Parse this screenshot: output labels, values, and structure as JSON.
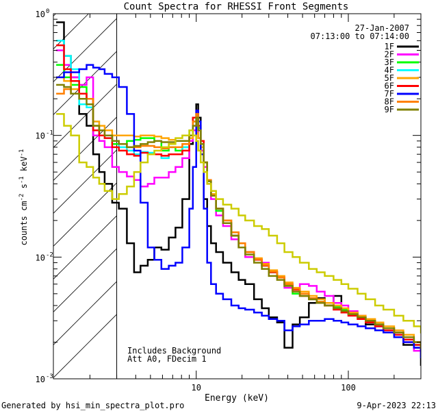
{
  "chart_data": {
    "type": "line",
    "title": "Count Spectra for RHESSI Front Segments",
    "xlabel": "Energy (keV)",
    "ylabel": "counts cm^-2 s^-1 keV^-1",
    "xscale": "log",
    "yscale": "log",
    "xlim": [
      1.15,
      300
    ],
    "ylim": [
      0.001,
      1.0
    ],
    "x_ticks": [
      {
        "value": 10,
        "label": "10"
      },
      {
        "value": 100,
        "label": "100"
      }
    ],
    "y_ticks": [
      {
        "value": 0.001,
        "label": "10",
        "exp": "-3"
      },
      {
        "value": 0.01,
        "label": "10",
        "exp": "-2"
      },
      {
        "value": 0.1,
        "label": "10",
        "exp": "-1"
      },
      {
        "value": 1.0,
        "label": "10",
        "exp": "0"
      }
    ],
    "hatched_region_upper_kev": 3.0,
    "legend": {
      "placement": "top-right",
      "date": "27-Jan-2007",
      "time_range": "07:13:00 to 07:14:00"
    },
    "annotations": [
      "Includes Background",
      "Att A0, FDecim 1"
    ],
    "series": [
      {
        "name": "1F",
        "color": "#000000",
        "x": [
          1.2,
          1.35,
          1.5,
          1.7,
          1.9,
          2.1,
          2.3,
          2.5,
          2.8,
          3.1,
          3.5,
          3.9,
          4.3,
          4.8,
          5.3,
          5.9,
          6.6,
          7.3,
          8.1,
          9.0,
          9.5,
          10.0,
          10.3,
          10.7,
          11.2,
          11.8,
          12.5,
          13.5,
          15,
          17,
          19,
          21,
          24,
          27,
          30,
          34,
          38,
          43,
          48,
          55,
          62,
          70,
          80,
          90,
          100,
          115,
          130,
          150,
          170,
          200,
          230,
          270,
          300
        ],
        "y": [
          0.85,
          0.45,
          0.3,
          0.15,
          0.12,
          0.07,
          0.05,
          0.04,
          0.028,
          0.025,
          0.013,
          0.0075,
          0.0085,
          0.0095,
          0.012,
          0.0115,
          0.0145,
          0.0175,
          0.03,
          0.085,
          0.14,
          0.18,
          0.14,
          0.07,
          0.03,
          0.018,
          0.013,
          0.011,
          0.009,
          0.0075,
          0.0065,
          0.006,
          0.0045,
          0.0038,
          0.0032,
          0.0029,
          0.0018,
          0.0028,
          0.0032,
          0.0042,
          0.0046,
          0.004,
          0.0048,
          0.0036,
          0.0034,
          0.0032,
          0.0028,
          0.0027,
          0.0026,
          0.0024,
          0.0019,
          0.0018,
          0.0013
        ]
      },
      {
        "name": "2F",
        "color": "#ff00ff",
        "x": [
          1.2,
          1.35,
          1.5,
          1.7,
          1.9,
          2.1,
          2.3,
          2.5,
          2.8,
          3.1,
          3.5,
          3.9,
          4.3,
          4.8,
          5.3,
          5.9,
          6.6,
          7.3,
          8.1,
          9.0,
          9.5,
          10.0,
          10.3,
          10.7,
          11.2,
          11.8,
          12.5,
          13.5,
          15,
          17,
          19,
          21,
          24,
          27,
          30,
          34,
          38,
          43,
          48,
          55,
          62,
          70,
          80,
          90,
          100,
          115,
          130,
          150,
          170,
          200,
          230,
          270,
          300
        ],
        "y": [
          0.5,
          0.38,
          0.3,
          0.26,
          0.3,
          0.1,
          0.09,
          0.08,
          0.055,
          0.05,
          0.046,
          0.043,
          0.038,
          0.04,
          0.045,
          0.045,
          0.05,
          0.055,
          0.065,
          0.09,
          0.11,
          0.12,
          0.095,
          0.075,
          0.055,
          0.04,
          0.03,
          0.022,
          0.018,
          0.014,
          0.012,
          0.01,
          0.0095,
          0.009,
          0.0075,
          0.0068,
          0.0056,
          0.0055,
          0.006,
          0.0058,
          0.0052,
          0.0048,
          0.0042,
          0.004,
          0.0036,
          0.0033,
          0.003,
          0.0027,
          0.0025,
          0.0023,
          0.002,
          0.0017,
          0.0016
        ]
      },
      {
        "name": "3F",
        "color": "#00ff00",
        "x": [
          1.2,
          1.35,
          1.5,
          1.7,
          1.9,
          2.1,
          2.3,
          2.5,
          2.8,
          3.1,
          3.5,
          3.9,
          4.3,
          4.8,
          5.3,
          5.9,
          6.6,
          7.3,
          8.1,
          9.0,
          9.5,
          10.0,
          10.3,
          10.7,
          11.2,
          11.8,
          12.5,
          13.5,
          15,
          17,
          19,
          21,
          24,
          27,
          30,
          34,
          38,
          43,
          48,
          55,
          62,
          70,
          80,
          90,
          100,
          115,
          130,
          150,
          170,
          200,
          230,
          270,
          300
        ],
        "y": [
          0.38,
          0.3,
          0.26,
          0.25,
          0.2,
          0.12,
          0.1,
          0.1,
          0.085,
          0.085,
          0.09,
          0.092,
          0.095,
          0.095,
          0.09,
          0.075,
          0.08,
          0.075,
          0.08,
          0.1,
          0.13,
          0.15,
          0.115,
          0.09,
          0.06,
          0.042,
          0.032,
          0.024,
          0.019,
          0.015,
          0.012,
          0.011,
          0.0095,
          0.0085,
          0.0075,
          0.0068,
          0.0058,
          0.005,
          0.0048,
          0.0045,
          0.0043,
          0.0042,
          0.0039,
          0.0037,
          0.0035,
          0.0032,
          0.003,
          0.0028,
          0.0025,
          0.0023,
          0.0021,
          0.0019,
          0.0017
        ]
      },
      {
        "name": "4F",
        "color": "#00ffff",
        "x": [
          1.2,
          1.35,
          1.5,
          1.7,
          1.9,
          2.1,
          2.3,
          2.5,
          2.8,
          3.1,
          3.5,
          3.9,
          4.3,
          4.8,
          5.3,
          5.9,
          6.6,
          7.3,
          8.1,
          9.0,
          9.5,
          10.0,
          10.3,
          10.7,
          11.2,
          11.8,
          12.5,
          13.5,
          15,
          17,
          19,
          21,
          24,
          27,
          30,
          34,
          38,
          43,
          48,
          55,
          62,
          70,
          80,
          90,
          100,
          115,
          130,
          150,
          170,
          200,
          230,
          270,
          300
        ],
        "y": [
          0.6,
          0.45,
          0.35,
          0.18,
          0.17,
          0.13,
          0.1,
          0.095,
          0.09,
          0.08,
          0.075,
          0.07,
          0.073,
          0.072,
          0.07,
          0.065,
          0.07,
          0.07,
          0.08,
          0.11,
          0.13,
          0.145,
          0.11,
          0.085,
          0.06,
          0.042,
          0.032,
          0.025,
          0.02,
          0.015,
          0.012,
          0.011,
          0.0095,
          0.0085,
          0.0075,
          0.0068,
          0.006,
          0.0055,
          0.005,
          0.0046,
          0.0043,
          0.004,
          0.0038,
          0.0036,
          0.0034,
          0.0032,
          0.003,
          0.0027,
          0.0025,
          0.0023,
          0.0021,
          0.0019,
          0.0017
        ]
      },
      {
        "name": "5F",
        "color": "#ffa500",
        "x": [
          1.2,
          1.35,
          1.5,
          1.7,
          1.9,
          2.1,
          2.3,
          2.5,
          2.8,
          3.1,
          3.5,
          3.9,
          4.3,
          4.8,
          5.3,
          5.9,
          6.6,
          7.3,
          8.1,
          9.0,
          9.5,
          10.0,
          10.3,
          10.7,
          11.2,
          11.8,
          12.5,
          13.5,
          15,
          17,
          19,
          21,
          24,
          27,
          30,
          34,
          38,
          43,
          48,
          55,
          62,
          70,
          80,
          90,
          100,
          115,
          130,
          150,
          170,
          200,
          230,
          270,
          300
        ],
        "y": [
          0.3,
          0.28,
          0.24,
          0.22,
          0.2,
          0.13,
          0.12,
          0.11,
          0.1,
          0.1,
          0.1,
          0.098,
          0.1,
          0.1,
          0.098,
          0.095,
          0.092,
          0.09,
          0.09,
          0.095,
          0.1,
          0.105,
          0.095,
          0.08,
          0.06,
          0.043,
          0.033,
          0.025,
          0.02,
          0.016,
          0.013,
          0.011,
          0.0098,
          0.0088,
          0.0078,
          0.007,
          0.0062,
          0.0056,
          0.0052,
          0.0048,
          0.0045,
          0.0042,
          0.004,
          0.0038,
          0.0035,
          0.0033,
          0.0031,
          0.0029,
          0.0027,
          0.0025,
          0.0023,
          0.002,
          0.0018
        ]
      },
      {
        "name": "6F",
        "color": "#ff0000",
        "x": [
          1.2,
          1.35,
          1.5,
          1.7,
          1.9,
          2.1,
          2.3,
          2.5,
          2.8,
          3.1,
          3.5,
          3.9,
          4.3,
          4.8,
          5.3,
          5.9,
          6.6,
          7.3,
          8.1,
          9.0,
          9.5,
          10.0,
          10.3,
          10.7,
          11.2,
          11.8,
          12.5,
          13.5,
          15,
          17,
          19,
          21,
          24,
          27,
          30,
          34,
          38,
          43,
          48,
          55,
          62,
          70,
          80,
          90,
          100,
          115,
          130,
          150,
          170,
          200,
          230,
          270,
          300
        ],
        "y": [
          0.55,
          0.35,
          0.28,
          0.22,
          0.2,
          0.11,
          0.1,
          0.095,
          0.08,
          0.075,
          0.07,
          0.068,
          0.072,
          0.07,
          0.07,
          0.068,
          0.07,
          0.07,
          0.075,
          0.1,
          0.14,
          0.16,
          0.12,
          0.09,
          0.06,
          0.043,
          0.032,
          0.025,
          0.019,
          0.015,
          0.012,
          0.011,
          0.0095,
          0.0085,
          0.0075,
          0.0068,
          0.006,
          0.0054,
          0.0048,
          0.0045,
          0.0042,
          0.004,
          0.0037,
          0.0035,
          0.0033,
          0.0031,
          0.0029,
          0.0027,
          0.0025,
          0.0023,
          0.0021,
          0.0019,
          0.0017
        ]
      },
      {
        "name": "7F",
        "color": "#0000ff",
        "x": [
          1.2,
          1.35,
          1.5,
          1.7,
          1.9,
          2.1,
          2.3,
          2.5,
          2.8,
          3.1,
          3.5,
          3.9,
          4.3,
          4.8,
          5.3,
          5.9,
          6.6,
          7.3,
          8.1,
          9.0,
          9.5,
          10.0,
          10.3,
          10.7,
          11.2,
          11.8,
          12.5,
          13.5,
          15,
          17,
          19,
          21,
          24,
          27,
          30,
          34,
          38,
          43,
          48,
          55,
          62,
          70,
          80,
          90,
          100,
          115,
          130,
          150,
          170,
          200,
          230,
          270,
          300
        ],
        "y": [
          0.3,
          0.33,
          0.33,
          0.35,
          0.38,
          0.36,
          0.35,
          0.32,
          0.3,
          0.25,
          0.15,
          0.075,
          0.028,
          0.012,
          0.0095,
          0.008,
          0.0085,
          0.009,
          0.012,
          0.025,
          0.055,
          0.16,
          0.13,
          0.07,
          0.025,
          0.009,
          0.006,
          0.005,
          0.0045,
          0.004,
          0.0038,
          0.0037,
          0.0035,
          0.0033,
          0.0031,
          0.003,
          0.0025,
          0.0027,
          0.0028,
          0.003,
          0.003,
          0.0031,
          0.003,
          0.0029,
          0.0028,
          0.0027,
          0.0026,
          0.0025,
          0.0024,
          0.0022,
          0.002,
          0.0018,
          0.0015
        ]
      },
      {
        "name": "8F",
        "color": "#ff7f00",
        "x": [
          1.2,
          1.35,
          1.5,
          1.7,
          1.9,
          2.1,
          2.3,
          2.5,
          2.8,
          3.1,
          3.5,
          3.9,
          4.3,
          4.8,
          5.3,
          5.9,
          6.6,
          7.3,
          8.1,
          9.0,
          9.5,
          10.0,
          10.3,
          10.7,
          11.2,
          11.8,
          12.5,
          13.5,
          15,
          17,
          19,
          21,
          24,
          27,
          30,
          34,
          38,
          43,
          48,
          55,
          62,
          70,
          80,
          90,
          100,
          115,
          130,
          150,
          170,
          200,
          230,
          270,
          300
        ],
        "y": [
          0.22,
          0.24,
          0.22,
          0.2,
          0.2,
          0.12,
          0.11,
          0.1,
          0.09,
          0.085,
          0.08,
          0.08,
          0.082,
          0.082,
          0.08,
          0.078,
          0.08,
          0.08,
          0.085,
          0.1,
          0.13,
          0.15,
          0.11,
          0.085,
          0.06,
          0.043,
          0.032,
          0.025,
          0.02,
          0.016,
          0.013,
          0.011,
          0.0096,
          0.0086,
          0.0076,
          0.0068,
          0.006,
          0.0055,
          0.005,
          0.0046,
          0.0043,
          0.004,
          0.0038,
          0.0036,
          0.0034,
          0.0032,
          0.003,
          0.0028,
          0.0026,
          0.0024,
          0.0022,
          0.002,
          0.0018
        ]
      },
      {
        "name": "9F",
        "color": "#808000",
        "x": [
          1.2,
          1.35,
          1.5,
          1.7,
          1.9,
          2.1,
          2.3,
          2.5,
          2.8,
          3.1,
          3.5,
          3.9,
          4.3,
          4.8,
          5.3,
          5.9,
          6.6,
          7.3,
          8.1,
          9.0,
          9.5,
          10.0,
          10.3,
          10.7,
          11.2,
          11.8,
          12.5,
          13.5,
          15,
          17,
          19,
          21,
          24,
          27,
          30,
          34,
          38,
          43,
          48,
          55,
          62,
          70,
          80,
          90,
          100,
          115,
          130,
          150,
          170,
          200,
          230,
          270,
          300
        ],
        "y": [
          0.26,
          0.25,
          0.22,
          0.2,
          0.18,
          0.12,
          0.11,
          0.1,
          0.09,
          0.085,
          0.08,
          0.082,
          0.085,
          0.088,
          0.09,
          0.088,
          0.088,
          0.09,
          0.09,
          0.1,
          0.12,
          0.14,
          0.11,
          0.085,
          0.06,
          0.042,
          0.032,
          0.025,
          0.019,
          0.015,
          0.012,
          0.0105,
          0.009,
          0.008,
          0.007,
          0.0065,
          0.0058,
          0.0052,
          0.0048,
          0.0045,
          0.0042,
          0.004,
          0.0038,
          0.0036,
          0.0034,
          0.0032,
          0.003,
          0.0028,
          0.0026,
          0.0024,
          0.0022,
          0.002,
          0.0018
        ]
      },
      {
        "name": "",
        "color": "#cccc00",
        "x": [
          1.2,
          1.35,
          1.5,
          1.7,
          1.9,
          2.1,
          2.3,
          2.5,
          2.8,
          3.1,
          3.5,
          3.9,
          4.3,
          4.8,
          5.3,
          5.9,
          6.6,
          7.3,
          8.1,
          9.0,
          9.5,
          10.0,
          10.3,
          10.7,
          11.2,
          11.8,
          12.5,
          13.5,
          15,
          17,
          19,
          21,
          24,
          27,
          30,
          34,
          38,
          43,
          48,
          55,
          62,
          70,
          80,
          90,
          100,
          115,
          130,
          150,
          170,
          200,
          230,
          270,
          300
        ],
        "y": [
          0.15,
          0.12,
          0.1,
          0.06,
          0.055,
          0.045,
          0.04,
          0.035,
          0.03,
          0.033,
          0.038,
          0.05,
          0.06,
          0.07,
          0.075,
          0.08,
          0.085,
          0.095,
          0.1,
          0.11,
          0.1,
          0.09,
          0.075,
          0.06,
          0.05,
          0.04,
          0.035,
          0.03,
          0.027,
          0.025,
          0.022,
          0.02,
          0.018,
          0.017,
          0.015,
          0.013,
          0.011,
          0.01,
          0.009,
          0.008,
          0.0075,
          0.007,
          0.0065,
          0.006,
          0.0055,
          0.005,
          0.0045,
          0.004,
          0.0037,
          0.0033,
          0.003,
          0.0027,
          0.0024
        ]
      }
    ]
  },
  "footer": {
    "left": "Generated by hsi_min_spectra_plot.pro",
    "right": "9-Apr-2023 22:13"
  }
}
